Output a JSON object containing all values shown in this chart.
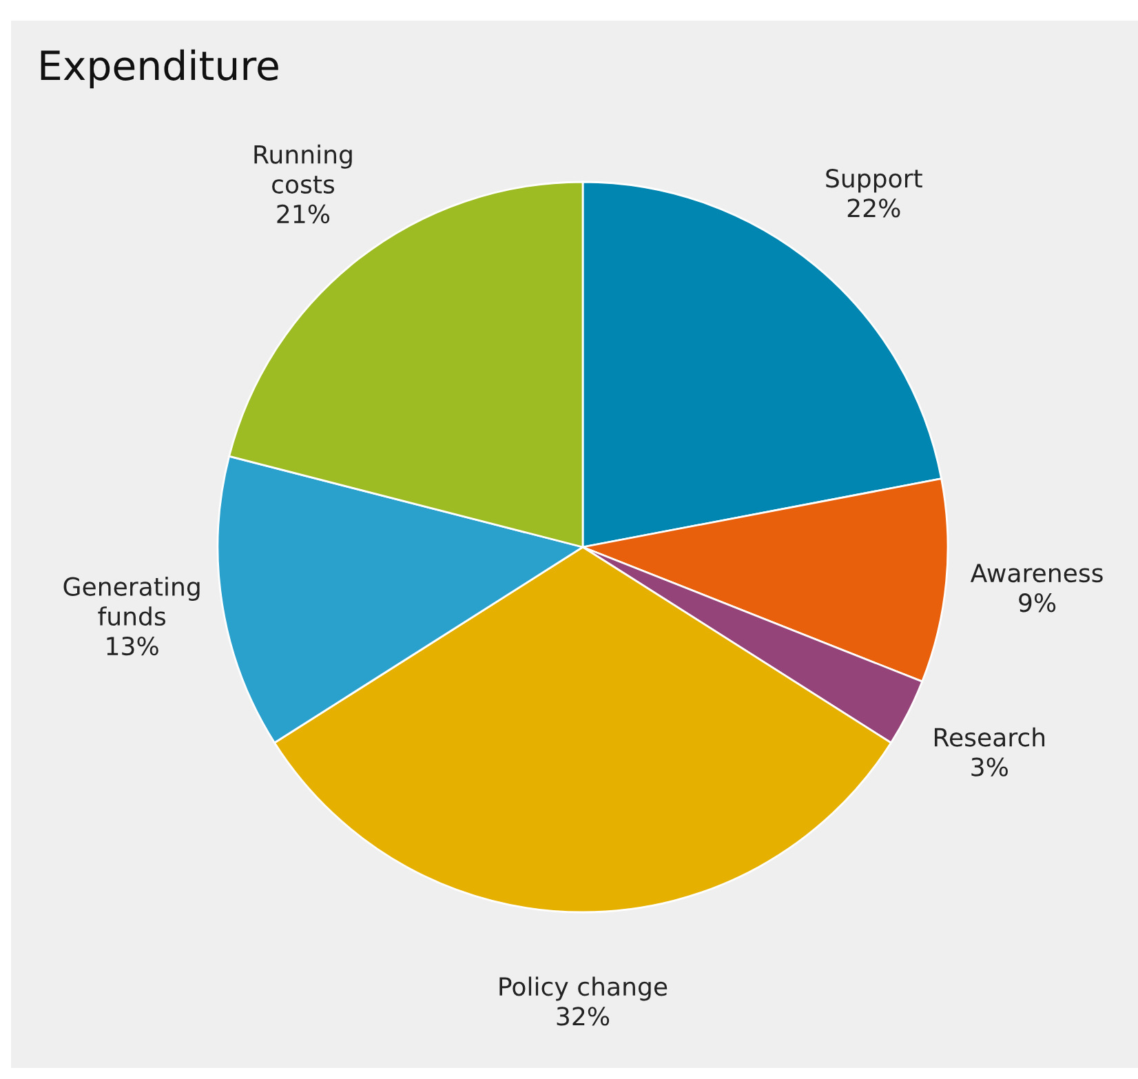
{
  "chart_data": {
    "type": "pie",
    "title": "Expenditure",
    "categories": [
      "Support",
      "Awareness",
      "Research",
      "Policy change",
      "Generating\nfunds",
      "Running\ncosts"
    ],
    "values": [
      22,
      9,
      3,
      32,
      13,
      21
    ],
    "colors": [
      "#0086b0",
      "#e8600c",
      "#944478",
      "#e5b000",
      "#2aa0cc",
      "#9dbb22"
    ],
    "value_labels": [
      "22%",
      "9%",
      "3%",
      "32%",
      "13%",
      "21%"
    ],
    "legend": false
  }
}
